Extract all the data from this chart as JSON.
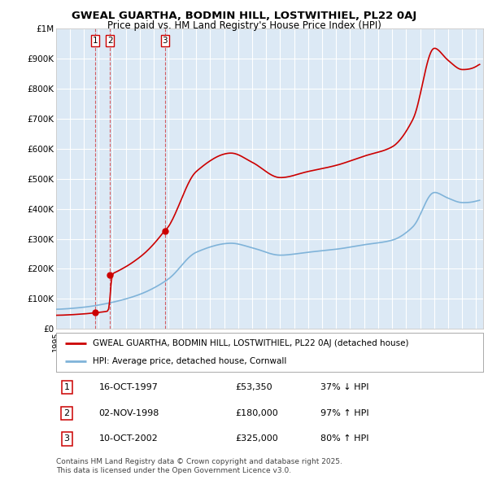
{
  "title_line1": "GWEAL GUARTHA, BODMIN HILL, LOSTWITHIEL, PL22 0AJ",
  "title_line2": "Price paid vs. HM Land Registry's House Price Index (HPI)",
  "bg_color": "#dce9f5",
  "grid_color": "#ffffff",
  "red_line_color": "#cc0000",
  "blue_line_color": "#7fb3d9",
  "ylabel_ticks": [
    "£0",
    "£100K",
    "£200K",
    "£300K",
    "£400K",
    "£500K",
    "£600K",
    "£700K",
    "£800K",
    "£900K",
    "£1M"
  ],
  "ytick_values": [
    0,
    100000,
    200000,
    300000,
    400000,
    500000,
    600000,
    700000,
    800000,
    900000,
    1000000
  ],
  "ylim": [
    0,
    1000000
  ],
  "xlim_start": 1995.0,
  "xlim_end": 2025.5,
  "transactions": [
    {
      "id": 1,
      "year": 1997.79,
      "price": 53350,
      "date": "16-OCT-1997",
      "rel": "37% ↓ HPI"
    },
    {
      "id": 2,
      "year": 1998.84,
      "price": 180000,
      "date": "02-NOV-1998",
      "rel": "97% ↑ HPI"
    },
    {
      "id": 3,
      "year": 2002.78,
      "price": 325000,
      "date": "10-OCT-2002",
      "rel": "80% ↑ HPI"
    }
  ],
  "legend_label_red": "GWEAL GUARTHA, BODMIN HILL, LOSTWITHIEL, PL22 0AJ (detached house)",
  "legend_label_blue": "HPI: Average price, detached house, Cornwall",
  "footnote": "Contains HM Land Registry data © Crown copyright and database right 2025.\nThis data is licensed under the Open Government Licence v3.0."
}
